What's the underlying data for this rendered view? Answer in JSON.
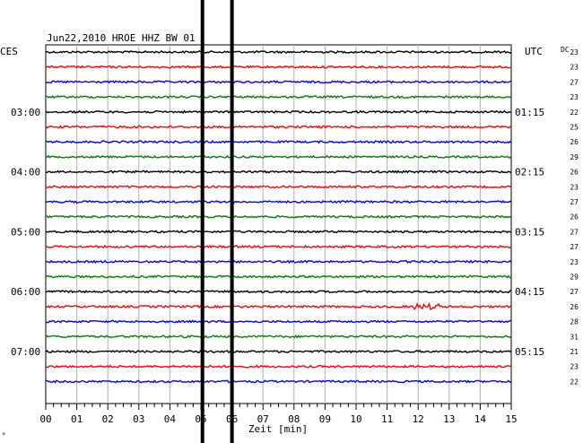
{
  "chart_data": {
    "type": "line",
    "title": "Jun22,2010   HROE HHZ BW 01",
    "left_label": "CES",
    "right_label": "UTC",
    "dc_label": "DC",
    "xlabel": "Zeit [min]",
    "xlim": [
      0,
      15
    ],
    "x_ticks": [
      "00",
      "01",
      "02",
      "03",
      "04",
      "05",
      "06",
      "07",
      "08",
      "09",
      "10",
      "11",
      "12",
      "13",
      "14",
      "15"
    ],
    "left_time_labels": [
      {
        "trace": 4,
        "text": "03:00"
      },
      {
        "trace": 8,
        "text": "04:00"
      },
      {
        "trace": 12,
        "text": "05:00"
      },
      {
        "trace": 16,
        "text": "06:00"
      },
      {
        "trace": 20,
        "text": "07:00"
      }
    ],
    "right_time_labels": [
      {
        "trace": 4,
        "text": "01:15"
      },
      {
        "trace": 8,
        "text": "02:15"
      },
      {
        "trace": 12,
        "text": "03:15"
      },
      {
        "trace": 16,
        "text": "04:15"
      },
      {
        "trace": 20,
        "text": "05:15"
      }
    ],
    "dc_offsets": [
      "23",
      "23",
      "27",
      "23",
      "22",
      "25",
      "26",
      "29",
      "26",
      "23",
      "27",
      "26",
      "27",
      "27",
      "23",
      "29",
      "27",
      "26",
      "28",
      "31",
      "21",
      "23",
      "22"
    ],
    "trace_colors": [
      "#000000",
      "#ff0000",
      "#0000ff",
      "#008000"
    ],
    "marker_lines_min": [
      5.05,
      6.0
    ],
    "marker_color": "#000000",
    "small_mark": "*",
    "grid": true
  }
}
